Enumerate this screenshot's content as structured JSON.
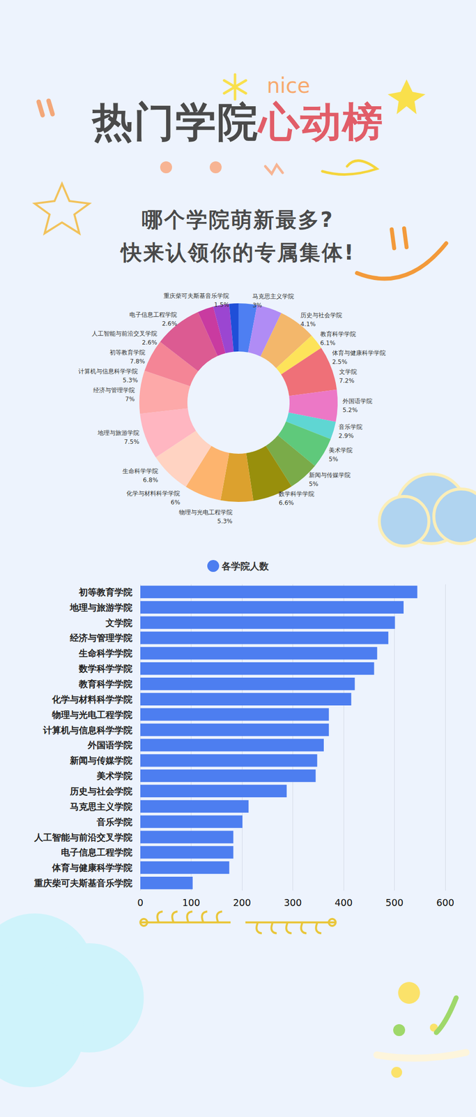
{
  "header": {
    "title": [
      "热门学院",
      "心动榜"
    ],
    "tag": "nice",
    "subtitle": [
      "哪个学院萌新最多?",
      "快来认领你的专属集体!"
    ]
  },
  "chart_data": [
    {
      "type": "pie",
      "categories": [
        "马克思主义学院",
        "历史与社会学院",
        "教育科学学院",
        "体育与健康科学学院",
        "文学院",
        "外国语学院",
        "音乐学院",
        "美术学院",
        "新闻与传媒学院",
        "数学科学学院",
        "物理与光电工程学院",
        "化学与材料科学学院",
        "生命科学学院",
        "地理与旅游学院",
        "经济与管理学院",
        "计算机与信息科学学院",
        "初等教育学院",
        "人工智能与前沿交叉学院",
        "电子信息工程学院",
        "重庆柴可夫斯基音乐学院"
      ],
      "values": [
        3,
        4.1,
        6.1,
        2.5,
        7.2,
        5.2,
        2.9,
        5,
        5,
        6.6,
        5.3,
        6,
        6.8,
        7.5,
        7,
        5.3,
        7.8,
        2.6,
        2.6,
        1.5
      ],
      "value_labels": [
        "3%",
        "4.1%",
        "6.1%",
        "2.5%",
        "7.2%",
        "5.2%",
        "2.9%",
        "5%",
        "5%",
        "6.6%",
        "5.3%",
        "6%",
        "6.8%",
        "7.5%",
        "7%",
        "5.3%",
        "7.8%",
        "2.6%",
        "2.6%",
        "1.5%"
      ],
      "colors": [
        "#4e7ff2",
        "#b08cf5",
        "#f3b76b",
        "#fde35a",
        "#ef7078",
        "#ec78c6",
        "#5fd6d3",
        "#5fc97b",
        "#7aab49",
        "#988f0c",
        "#dca12e",
        "#fdb46e",
        "#ffd3c2",
        "#ffb6c1",
        "#fda9a9",
        "#f48596",
        "#dc5b92",
        "#c93ba0",
        "#9b46d1",
        "#1f4fd8"
      ],
      "data_labels": true
    },
    {
      "type": "bar",
      "orientation": "horizontal",
      "categories": [
        "初等教育学院",
        "地理与旅游学院",
        "文学院",
        "经济与管理学院",
        "生命科学学院",
        "数学科学学院",
        "教育科学学院",
        "化学与材料科学学院",
        "物理与光电工程学院",
        "计算机与信息科学学院",
        "外国语学院",
        "新闻与传媒学院",
        "美术学院",
        "历史与社会学院",
        "马克思主义学院",
        "音乐学院",
        "人工智能与前沿交叉学院",
        "电子信息工程学院",
        "体育与健康科学学院",
        "重庆柴可夫斯基音乐学院"
      ],
      "series": [
        {
          "name": "各学院人数",
          "color": "#4d7ef0",
          "values": [
            545,
            518,
            501,
            488,
            466,
            460,
            422,
            415,
            371,
            371,
            361,
            348,
            345,
            288,
            213,
            201,
            183,
            183,
            175,
            103
          ]
        }
      ],
      "xlim": [
        0,
        600
      ],
      "xticks": [
        0,
        100,
        200,
        300,
        400,
        500,
        600
      ],
      "grid": true,
      "legend": "top"
    }
  ]
}
